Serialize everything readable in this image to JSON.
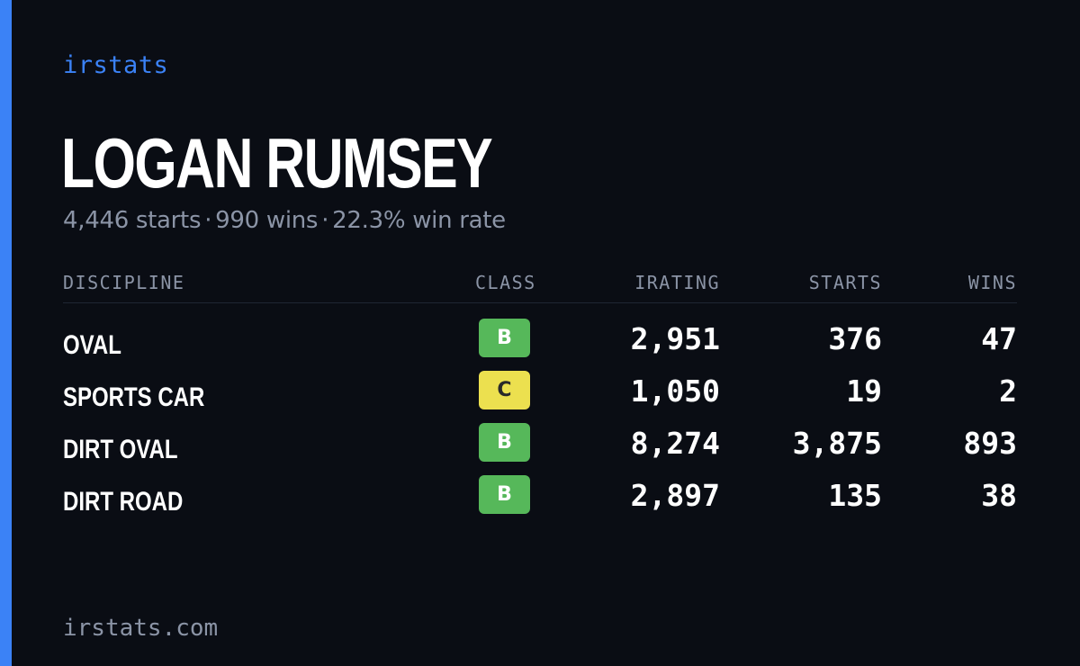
{
  "brand": "irstats",
  "accent_color": "#3b82f6",
  "player": {
    "name": "LOGAN RUMSEY",
    "starts": "4,446 starts",
    "wins": "990 wins",
    "win_rate": "22.3% win rate",
    "separator": "·"
  },
  "table": {
    "headers": {
      "discipline": "DISCIPLINE",
      "class": "CLASS",
      "irating": "IRATING",
      "starts": "STARTS",
      "wins": "WINS"
    },
    "rows": [
      {
        "discipline": "OVAL",
        "class": "B",
        "irating": "2,951",
        "starts": "376",
        "wins": "47"
      },
      {
        "discipline": "SPORTS CAR",
        "class": "C",
        "irating": "1,050",
        "starts": "19",
        "wins": "2"
      },
      {
        "discipline": "DIRT OVAL",
        "class": "B",
        "irating": "8,274",
        "starts": "3,875",
        "wins": "893"
      },
      {
        "discipline": "DIRT ROAD",
        "class": "B",
        "irating": "2,897",
        "starts": "135",
        "wins": "38"
      }
    ]
  },
  "class_colors": {
    "B": "#56b85a",
    "C": "#ece04f"
  },
  "footer": "irstats.com"
}
